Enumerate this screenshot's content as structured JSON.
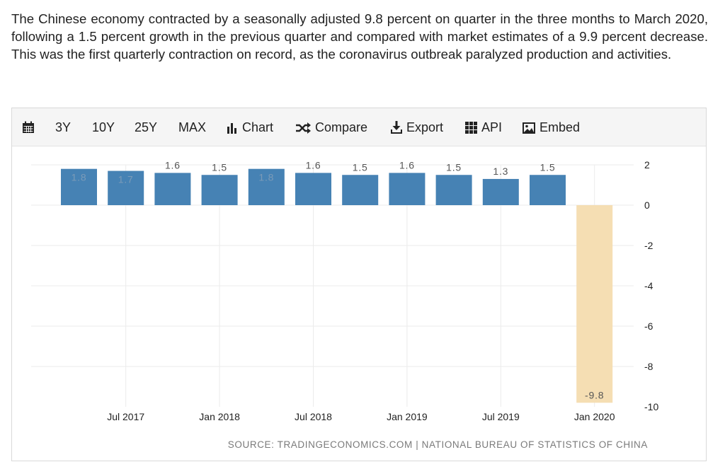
{
  "intro_text": "The Chinese economy contracted by a seasonally adjusted 9.8 percent on quarter in the three months to March 2020, following a 1.5 percent growth in the previous quarter and compared with market estimates of a 9.9 percent decrease. This was the first quarterly contraction on record, as the coronavirus outbreak paralyzed production and activities.",
  "toolbar": {
    "calendar_icon": "calendar-icon",
    "items": [
      {
        "label": "3Y"
      },
      {
        "label": "10Y"
      },
      {
        "label": "25Y"
      },
      {
        "label": "MAX"
      },
      {
        "label": "Chart",
        "icon": "bar-chart-icon"
      },
      {
        "label": "Compare",
        "icon": "shuffle-icon"
      },
      {
        "label": "Export",
        "icon": "download-icon"
      },
      {
        "label": "API",
        "icon": "grid-icon"
      },
      {
        "label": "Embed",
        "icon": "image-icon"
      }
    ]
  },
  "source": "SOURCE: TRADINGECONOMICS.COM | NATIONAL BUREAU OF STATISTICS OF CHINA",
  "chart_data": {
    "type": "bar",
    "categories": [
      "Q2 2017",
      "Q3 2017",
      "Q4 2017",
      "Q1 2018",
      "Q2 2018",
      "Q3 2018",
      "Q4 2018",
      "Q1 2019",
      "Q2 2019",
      "Q3 2019",
      "Q4 2019",
      "Q1 2020"
    ],
    "values": [
      1.8,
      1.7,
      1.6,
      1.5,
      1.8,
      1.6,
      1.5,
      1.6,
      1.5,
      1.3,
      1.5,
      -9.8
    ],
    "data_labels": [
      "1.8",
      "1.7",
      "1.6",
      "1.5",
      "1.8",
      "1.6",
      "1.5",
      "1.6",
      "1.5",
      "1.3",
      "1.5",
      "-9.8"
    ],
    "x_tick_labels": [
      {
        "label": "Jul 2017",
        "category": "Q3 2017"
      },
      {
        "label": "Jan 2018",
        "category": "Q1 2018"
      },
      {
        "label": "Jul 2018",
        "category": "Q3 2018"
      },
      {
        "label": "Jan 2019",
        "category": "Q1 2019"
      },
      {
        "label": "Jul 2019",
        "category": "Q3 2019"
      },
      {
        "label": "Jan 2020",
        "category": "Q1 2020"
      }
    ],
    "y_ticks": [
      "2",
      "0",
      "-2",
      "-4",
      "-6",
      "-8",
      "-10"
    ],
    "ylim": [
      -10,
      2
    ],
    "y_axis_side": "right",
    "grid": true,
    "colors": {
      "positive": "#4682b4",
      "negative": "#f5deb3",
      "label": "#555555",
      "inside_label": "#7b9bb8",
      "grid": "#ebebeb",
      "axis": "#222222"
    }
  }
}
